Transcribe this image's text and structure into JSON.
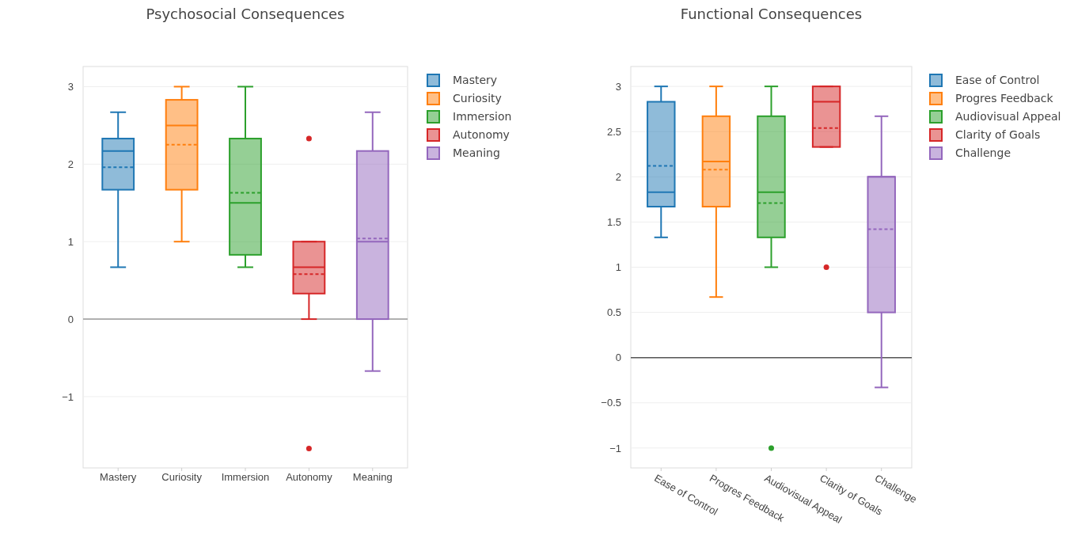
{
  "chart_data": [
    {
      "type": "box",
      "title": "Psychosocial Consequences",
      "categories": [
        "Mastery",
        "Curiosity",
        "Immersion",
        "Autonomy",
        "Meaning"
      ],
      "ylim": [
        -1.92,
        3.26
      ],
      "yticks": [
        -1,
        0,
        1,
        2,
        3
      ],
      "grid": "y",
      "legend": "top right",
      "ref_lines": [
        {
          "axis": "y",
          "value": 0,
          "color": "#999999"
        }
      ],
      "series": [
        {
          "name": "Mastery",
          "color": "#1f77b4",
          "boxes": [
            {
              "low": 0.67,
              "q1": 1.67,
              "median": 2.17,
              "q3": 2.33,
              "high": 2.67,
              "mean": 1.96
            },
            null,
            null,
            null,
            null
          ]
        },
        {
          "name": "Curiosity",
          "color": "#ff7f0e",
          "boxes": [
            null,
            {
              "low": 1,
              "q1": 1.67,
              "median": 2.5,
              "q3": 2.83,
              "high": 3,
              "mean": 2.25
            },
            null,
            null,
            null
          ]
        },
        {
          "name": "Immersion",
          "color": "#2ca02c",
          "boxes": [
            null,
            null,
            {
              "low": 0.67,
              "q1": 0.83,
              "median": 1.5,
              "q3": 2.33,
              "high": 3,
              "mean": 1.63
            },
            null,
            null
          ]
        },
        {
          "name": "Autonomy",
          "color": "#d62728",
          "boxes": [
            null,
            null,
            null,
            {
              "low": 0,
              "q1": 0.33,
              "median": 0.67,
              "q3": 1,
              "high": 1,
              "mean": 0.58,
              "outliers": [
                2.33,
                -1.67
              ]
            },
            null
          ]
        },
        {
          "name": "Meaning",
          "color": "#9467bd",
          "boxes": [
            null,
            null,
            null,
            null,
            {
              "low": -0.67,
              "q1": 0,
              "median": 1,
              "q3": 2.17,
              "high": 2.67,
              "mean": 1.04
            }
          ]
        }
      ]
    },
    {
      "type": "box",
      "title": "Functional Consequences",
      "categories": [
        "Ease of Control",
        "Progres Feedback",
        "Audiovisual Appeal",
        "Clarity of Goals",
        "Challenge"
      ],
      "ylim": [
        -1.22,
        3.22
      ],
      "yticks": [
        -1,
        -0.5,
        0,
        0.5,
        1,
        1.5,
        2,
        2.5,
        3
      ],
      "grid": "y",
      "legend": "top right",
      "ref_lines": [
        {
          "axis": "y",
          "value": 0,
          "color": "#555555"
        }
      ],
      "series": [
        {
          "name": "Ease of Control",
          "color": "#1f77b4",
          "boxes": [
            {
              "low": 1.33,
              "q1": 1.67,
              "median": 1.83,
              "q3": 2.83,
              "high": 3,
              "mean": 2.12
            },
            null,
            null,
            null,
            null
          ]
        },
        {
          "name": "Progres Feedback",
          "color": "#ff7f0e",
          "boxes": [
            null,
            {
              "low": 0.67,
              "q1": 1.67,
              "median": 2.17,
              "q3": 2.67,
              "high": 3,
              "mean": 2.08
            },
            null,
            null,
            null
          ]
        },
        {
          "name": "Audiovisual Appeal",
          "color": "#2ca02c",
          "boxes": [
            null,
            null,
            {
              "low": 1,
              "q1": 1.33,
              "median": 1.83,
              "q3": 2.67,
              "high": 3,
              "mean": 1.71,
              "outliers": [
                -1
              ]
            },
            null,
            null
          ]
        },
        {
          "name": "Clarity of Goals",
          "color": "#d62728",
          "boxes": [
            null,
            null,
            null,
            {
              "low": 2.33,
              "q1": 2.33,
              "median": 2.83,
              "q3": 3,
              "high": 3,
              "mean": 2.54,
              "outliers": [
                1
              ]
            },
            null
          ]
        },
        {
          "name": "Challenge",
          "color": "#9467bd",
          "boxes": [
            null,
            null,
            null,
            null,
            {
              "low": -0.33,
              "q1": 0.5,
              "median": 2,
              "q3": 2,
              "high": 2.67,
              "mean": 1.42
            }
          ]
        }
      ]
    }
  ]
}
